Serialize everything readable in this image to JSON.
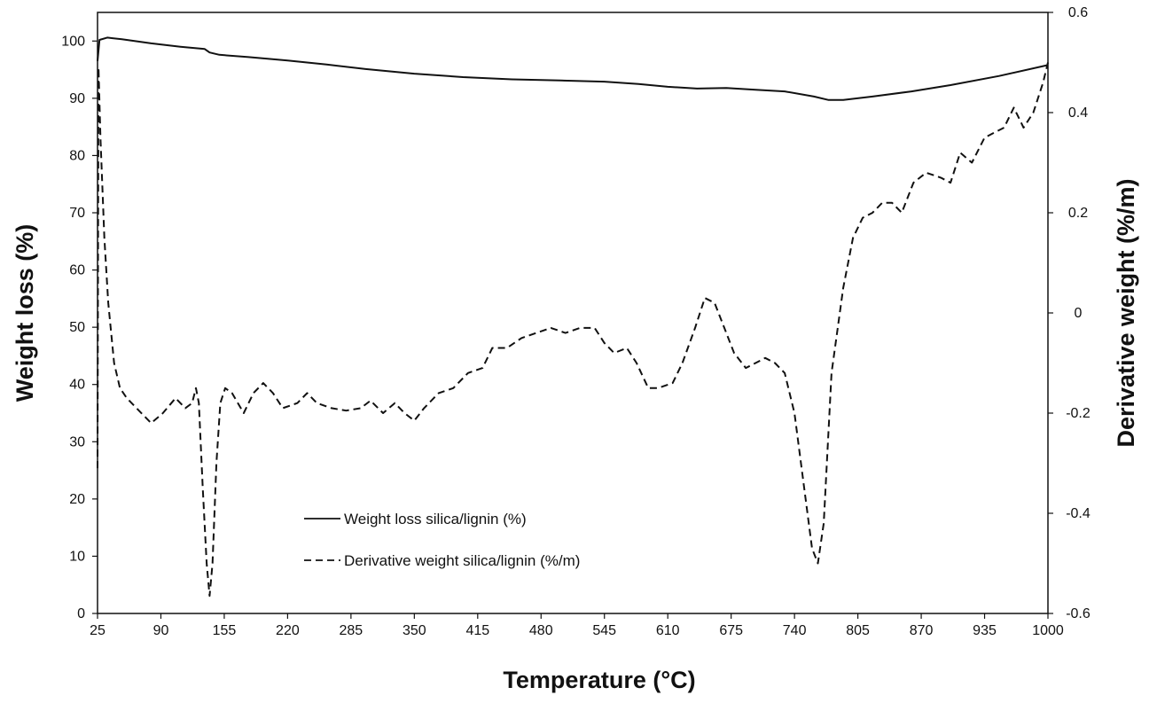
{
  "chart_data": {
    "type": "line",
    "title": "",
    "xlabel": "Temperature (°C)",
    "ylabel_left": "Weight loss (%)",
    "ylabel_right": "Derivative weight (%/m)",
    "xlim": [
      25,
      1000
    ],
    "ylim_left": [
      0,
      105
    ],
    "ylim_right": [
      -0.6,
      0.6
    ],
    "x_ticks": [
      25,
      90,
      155,
      220,
      285,
      350,
      415,
      480,
      545,
      610,
      675,
      740,
      805,
      870,
      935,
      1000
    ],
    "y_left_ticks": [
      0,
      10,
      20,
      30,
      40,
      50,
      60,
      70,
      80,
      90,
      100
    ],
    "y_right_ticks": [
      "-0.6",
      "-0.4",
      "-0.2",
      "0",
      "0.2",
      "0.4",
      "0.6"
    ],
    "grid": false,
    "legend_position": "bottom-center",
    "series": [
      {
        "name": "Weight loss silica/lignin (%)",
        "axis": "left",
        "style": "solid",
        "color": "#111111",
        "points": [
          [
            25,
            96.5
          ],
          [
            27,
            100.2
          ],
          [
            35,
            100.6
          ],
          [
            50,
            100.3
          ],
          [
            80,
            99.6
          ],
          [
            110,
            99.0
          ],
          [
            135,
            98.6
          ],
          [
            140,
            98.0
          ],
          [
            150,
            97.6
          ],
          [
            180,
            97.2
          ],
          [
            220,
            96.6
          ],
          [
            260,
            95.9
          ],
          [
            300,
            95.1
          ],
          [
            350,
            94.3
          ],
          [
            400,
            93.7
          ],
          [
            450,
            93.3
          ],
          [
            500,
            93.1
          ],
          [
            545,
            92.9
          ],
          [
            580,
            92.5
          ],
          [
            610,
            92.0
          ],
          [
            640,
            91.7
          ],
          [
            670,
            91.8
          ],
          [
            700,
            91.5
          ],
          [
            730,
            91.2
          ],
          [
            760,
            90.3
          ],
          [
            775,
            89.7
          ],
          [
            790,
            89.7
          ],
          [
            820,
            90.3
          ],
          [
            860,
            91.2
          ],
          [
            900,
            92.3
          ],
          [
            950,
            93.9
          ],
          [
            1000,
            95.8
          ]
        ]
      },
      {
        "name": "Derivative weight silica/lignin (%/m)",
        "axis": "right",
        "style": "dashed",
        "color": "#111111",
        "points": [
          [
            25,
            -0.31
          ],
          [
            26,
            0.49
          ],
          [
            28,
            0.35
          ],
          [
            32,
            0.15
          ],
          [
            36,
            0.02
          ],
          [
            42,
            -0.1
          ],
          [
            48,
            -0.15
          ],
          [
            55,
            -0.17
          ],
          [
            65,
            -0.19
          ],
          [
            80,
            -0.22
          ],
          [
            92,
            -0.2
          ],
          [
            105,
            -0.17
          ],
          [
            115,
            -0.19
          ],
          [
            122,
            -0.18
          ],
          [
            126,
            -0.15
          ],
          [
            129,
            -0.18
          ],
          [
            133,
            -0.35
          ],
          [
            137,
            -0.5
          ],
          [
            140,
            -0.565
          ],
          [
            143,
            -0.5
          ],
          [
            147,
            -0.3
          ],
          [
            151,
            -0.18
          ],
          [
            156,
            -0.15
          ],
          [
            163,
            -0.16
          ],
          [
            175,
            -0.2
          ],
          [
            185,
            -0.16
          ],
          [
            195,
            -0.14
          ],
          [
            205,
            -0.16
          ],
          [
            215,
            -0.19
          ],
          [
            230,
            -0.18
          ],
          [
            240,
            -0.16
          ],
          [
            250,
            -0.18
          ],
          [
            265,
            -0.19
          ],
          [
            280,
            -0.195
          ],
          [
            295,
            -0.19
          ],
          [
            305,
            -0.175
          ],
          [
            318,
            -0.2
          ],
          [
            330,
            -0.18
          ],
          [
            340,
            -0.2
          ],
          [
            350,
            -0.215
          ],
          [
            360,
            -0.19
          ],
          [
            375,
            -0.16
          ],
          [
            390,
            -0.15
          ],
          [
            405,
            -0.12
          ],
          [
            420,
            -0.11
          ],
          [
            430,
            -0.07
          ],
          [
            445,
            -0.07
          ],
          [
            460,
            -0.05
          ],
          [
            475,
            -0.04
          ],
          [
            490,
            -0.03
          ],
          [
            505,
            -0.04
          ],
          [
            520,
            -0.03
          ],
          [
            535,
            -0.03
          ],
          [
            545,
            -0.06
          ],
          [
            555,
            -0.08
          ],
          [
            568,
            -0.07
          ],
          [
            578,
            -0.1
          ],
          [
            590,
            -0.15
          ],
          [
            600,
            -0.15
          ],
          [
            615,
            -0.14
          ],
          [
            625,
            -0.1
          ],
          [
            638,
            -0.03
          ],
          [
            648,
            0.03
          ],
          [
            658,
            0.02
          ],
          [
            668,
            -0.03
          ],
          [
            678,
            -0.08
          ],
          [
            690,
            -0.11
          ],
          [
            700,
            -0.1
          ],
          [
            710,
            -0.09
          ],
          [
            720,
            -0.1
          ],
          [
            730,
            -0.12
          ],
          [
            740,
            -0.2
          ],
          [
            750,
            -0.35
          ],
          [
            758,
            -0.47
          ],
          [
            764,
            -0.5
          ],
          [
            770,
            -0.42
          ],
          [
            778,
            -0.12
          ],
          [
            790,
            0.05
          ],
          [
            800,
            0.15
          ],
          [
            810,
            0.19
          ],
          [
            820,
            0.2
          ],
          [
            830,
            0.22
          ],
          [
            840,
            0.22
          ],
          [
            850,
            0.2
          ],
          [
            862,
            0.26
          ],
          [
            875,
            0.28
          ],
          [
            890,
            0.27
          ],
          [
            900,
            0.26
          ],
          [
            910,
            0.32
          ],
          [
            922,
            0.3
          ],
          [
            935,
            0.35
          ],
          [
            945,
            0.36
          ],
          [
            955,
            0.37
          ],
          [
            965,
            0.41
          ],
          [
            975,
            0.37
          ],
          [
            985,
            0.4
          ],
          [
            995,
            0.46
          ],
          [
            1000,
            0.5
          ]
        ]
      }
    ]
  }
}
